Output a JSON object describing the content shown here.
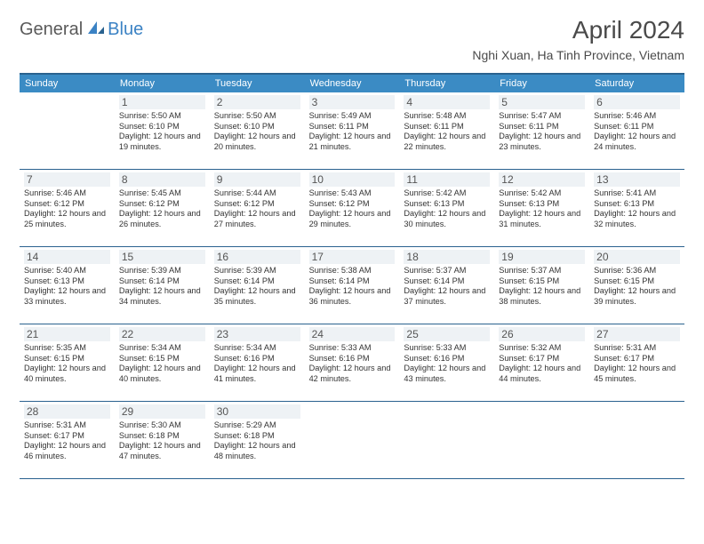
{
  "logo": {
    "text1": "General",
    "text2": "Blue"
  },
  "title": "April 2024",
  "location": "Nghi Xuan, Ha Tinh Province, Vietnam",
  "colors": {
    "header_bg": "#3b8bc4",
    "border": "#2a628f",
    "daynum_bg": "#eef2f5",
    "text": "#333333",
    "logo_gray": "#5a5a5a",
    "logo_blue": "#3b82c4"
  },
  "fonts": {
    "title_size": 28,
    "location_size": 14,
    "dayheader_size": 11,
    "daynum_size": 12,
    "body_size": 9.2
  },
  "dayNames": [
    "Sunday",
    "Monday",
    "Tuesday",
    "Wednesday",
    "Thursday",
    "Friday",
    "Saturday"
  ],
  "weeks": [
    [
      null,
      {
        "n": "1",
        "sr": "5:50 AM",
        "ss": "6:10 PM",
        "dl": "12 hours and 19 minutes."
      },
      {
        "n": "2",
        "sr": "5:50 AM",
        "ss": "6:10 PM",
        "dl": "12 hours and 20 minutes."
      },
      {
        "n": "3",
        "sr": "5:49 AM",
        "ss": "6:11 PM",
        "dl": "12 hours and 21 minutes."
      },
      {
        "n": "4",
        "sr": "5:48 AM",
        "ss": "6:11 PM",
        "dl": "12 hours and 22 minutes."
      },
      {
        "n": "5",
        "sr": "5:47 AM",
        "ss": "6:11 PM",
        "dl": "12 hours and 23 minutes."
      },
      {
        "n": "6",
        "sr": "5:46 AM",
        "ss": "6:11 PM",
        "dl": "12 hours and 24 minutes."
      }
    ],
    [
      {
        "n": "7",
        "sr": "5:46 AM",
        "ss": "6:12 PM",
        "dl": "12 hours and 25 minutes."
      },
      {
        "n": "8",
        "sr": "5:45 AM",
        "ss": "6:12 PM",
        "dl": "12 hours and 26 minutes."
      },
      {
        "n": "9",
        "sr": "5:44 AM",
        "ss": "6:12 PM",
        "dl": "12 hours and 27 minutes."
      },
      {
        "n": "10",
        "sr": "5:43 AM",
        "ss": "6:12 PM",
        "dl": "12 hours and 29 minutes."
      },
      {
        "n": "11",
        "sr": "5:42 AM",
        "ss": "6:13 PM",
        "dl": "12 hours and 30 minutes."
      },
      {
        "n": "12",
        "sr": "5:42 AM",
        "ss": "6:13 PM",
        "dl": "12 hours and 31 minutes."
      },
      {
        "n": "13",
        "sr": "5:41 AM",
        "ss": "6:13 PM",
        "dl": "12 hours and 32 minutes."
      }
    ],
    [
      {
        "n": "14",
        "sr": "5:40 AM",
        "ss": "6:13 PM",
        "dl": "12 hours and 33 minutes."
      },
      {
        "n": "15",
        "sr": "5:39 AM",
        "ss": "6:14 PM",
        "dl": "12 hours and 34 minutes."
      },
      {
        "n": "16",
        "sr": "5:39 AM",
        "ss": "6:14 PM",
        "dl": "12 hours and 35 minutes."
      },
      {
        "n": "17",
        "sr": "5:38 AM",
        "ss": "6:14 PM",
        "dl": "12 hours and 36 minutes."
      },
      {
        "n": "18",
        "sr": "5:37 AM",
        "ss": "6:14 PM",
        "dl": "12 hours and 37 minutes."
      },
      {
        "n": "19",
        "sr": "5:37 AM",
        "ss": "6:15 PM",
        "dl": "12 hours and 38 minutes."
      },
      {
        "n": "20",
        "sr": "5:36 AM",
        "ss": "6:15 PM",
        "dl": "12 hours and 39 minutes."
      }
    ],
    [
      {
        "n": "21",
        "sr": "5:35 AM",
        "ss": "6:15 PM",
        "dl": "12 hours and 40 minutes."
      },
      {
        "n": "22",
        "sr": "5:34 AM",
        "ss": "6:15 PM",
        "dl": "12 hours and 40 minutes."
      },
      {
        "n": "23",
        "sr": "5:34 AM",
        "ss": "6:16 PM",
        "dl": "12 hours and 41 minutes."
      },
      {
        "n": "24",
        "sr": "5:33 AM",
        "ss": "6:16 PM",
        "dl": "12 hours and 42 minutes."
      },
      {
        "n": "25",
        "sr": "5:33 AM",
        "ss": "6:16 PM",
        "dl": "12 hours and 43 minutes."
      },
      {
        "n": "26",
        "sr": "5:32 AM",
        "ss": "6:17 PM",
        "dl": "12 hours and 44 minutes."
      },
      {
        "n": "27",
        "sr": "5:31 AM",
        "ss": "6:17 PM",
        "dl": "12 hours and 45 minutes."
      }
    ],
    [
      {
        "n": "28",
        "sr": "5:31 AM",
        "ss": "6:17 PM",
        "dl": "12 hours and 46 minutes."
      },
      {
        "n": "29",
        "sr": "5:30 AM",
        "ss": "6:18 PM",
        "dl": "12 hours and 47 minutes."
      },
      {
        "n": "30",
        "sr": "5:29 AM",
        "ss": "6:18 PM",
        "dl": "12 hours and 48 minutes."
      },
      null,
      null,
      null,
      null
    ]
  ],
  "labels": {
    "sunrise": "Sunrise:",
    "sunset": "Sunset:",
    "daylight": "Daylight:"
  }
}
